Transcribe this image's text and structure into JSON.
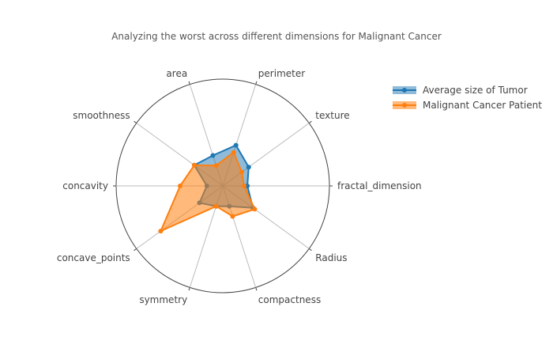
{
  "chart_data": {
    "type": "radar",
    "title": "Analyzing the worst across different dimensions for Malignant Cancer",
    "axes": [
      "fractal_dimension",
      "texture",
      "perimeter",
      "area",
      "smoothness",
      "concavity",
      "concave_points",
      "symmetry",
      "compactness",
      "Radius"
    ],
    "range": [
      0,
      1
    ],
    "series": [
      {
        "name": "Average size of Tumor",
        "color": "#1f77b4",
        "fill": "rgba(31,119,180,0.5)",
        "values": [
          0.23,
          0.3,
          0.4,
          0.3,
          0.33,
          0.15,
          0.27,
          0.2,
          0.2,
          0.35
        ]
      },
      {
        "name": "Malignant Cancer Patient",
        "color": "#ff7f0e",
        "fill": "rgba(255,127,14,0.55)",
        "values": [
          0.2,
          0.22,
          0.33,
          0.2,
          0.33,
          0.4,
          0.72,
          0.2,
          0.3,
          0.37
        ]
      }
    ]
  }
}
